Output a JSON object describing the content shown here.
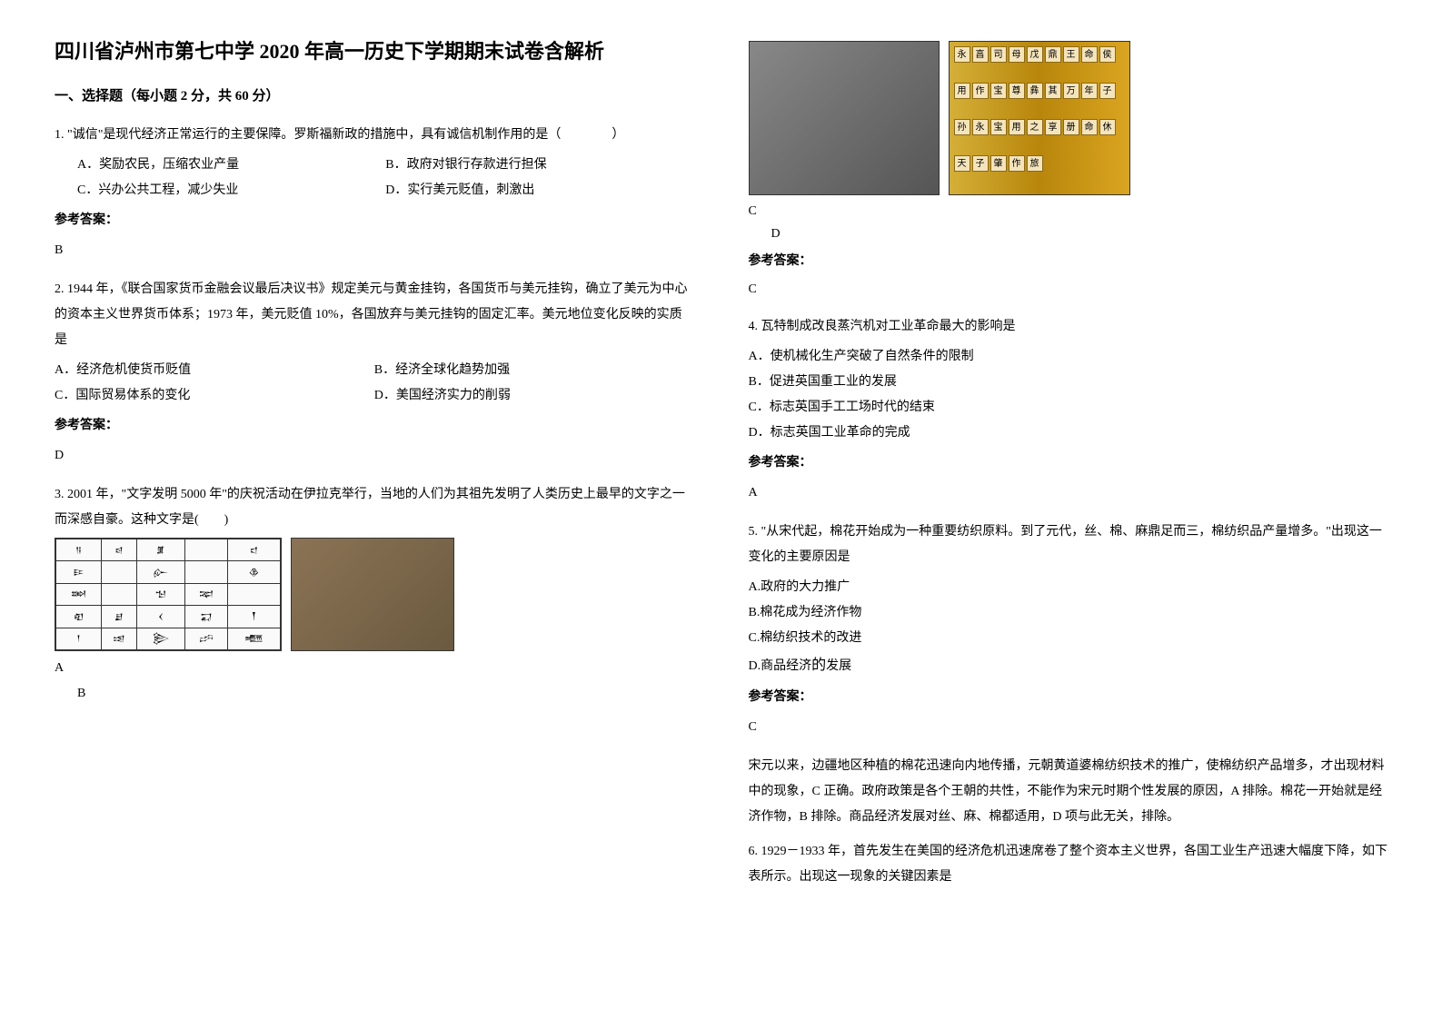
{
  "title": "四川省泸州市第七中学 2020 年高一历史下学期期末试卷含解析",
  "section1": {
    "heading": "一、选择题（每小题 2 分，共 60 分）",
    "q1": {
      "text": "1. \"诚信\"是现代经济正常运行的主要保障。罗斯福新政的措施中，具有诚信机制作用的是（　　　　）",
      "optA": "A．奖励农民，压缩农业产量",
      "optB": "B．政府对银行存款进行担保",
      "optC": "C．兴办公共工程，减少失业",
      "optD": "D．实行美元贬值，刺激出",
      "answerLabel": "参考答案：",
      "answer": "B"
    },
    "q2": {
      "text": "2. 1944 年，《联合国家货币金融会议最后决议书》规定美元与黄金挂钩，各国货币与美元挂钩，确立了美元为中心的资本主义世界货币体系；1973 年，美元贬值 10%，各国放弃与美元挂钩的固定汇率。美元地位变化反映的实质是",
      "optA": "A．经济危机使货币贬值",
      "optB": "B．经济全球化趋势加强",
      "optC": "C．国际贸易体系的变化",
      "optD": "D．美国经济实力的削弱",
      "answerLabel": "参考答案：",
      "answer": "D"
    },
    "q3": {
      "text": "3. 2001 年，\"文字发明 5000 年\"的庆祝活动在伊拉克举行，当地的人们为其祖先发明了人类历史上最早的文字之一而深感自豪。这种文字是(　　)",
      "optA": "A",
      "optB": "B",
      "optC": "C",
      "optD": "D",
      "answerLabel": "参考答案：",
      "answer": "C"
    },
    "q4": {
      "text": "4. 瓦特制成改良蒸汽机对工业革命最大的影响是",
      "optA": "A．使机械化生产突破了自然条件的限制",
      "optB": "B．促进英国重工业的发展",
      "optC": "C．标志英国手工工场时代的结束",
      "optD": "D．标志英国工业革命的完成",
      "answerLabel": "参考答案：",
      "answer": "A"
    },
    "q5": {
      "text": "5. \"从宋代起，棉花开始成为一种重要纺织原料。到了元代，丝、棉、麻鼎足而三，棉纺织品产量增多。\"出现这一变化的主要原因是",
      "optA": "A.政府的大力推广",
      "optB": "B.棉花成为经济作物",
      "optC": "C.棉纺织技术的改进",
      "optD_prefix": "D.商品经济",
      "optD_big": "的",
      "optD_suffix": "发展",
      "answerLabel": "参考答案：",
      "answer": "C",
      "explanation": "宋元以来，边疆地区种植的棉花迅速向内地传播，元朝黄道婆棉纺织技术的推广，使棉纺织产品增多，才出现材料中的现象，C 正确。政府政策是各个王朝的共性，不能作为宋元时期个性发展的原因，A 排除。棉花一开始就是经济作物，B 排除。商品经济发展对丝、麻、棉都适用，D 项与此无关，排除。"
    },
    "q6": {
      "text": "6. 1929－1933 年，首先发生在美国的经济危机迅速席卷了整个资本主义世界，各国工业生产迅速大幅度下降，如下表所示。出现这一现象的关键因素是"
    }
  }
}
